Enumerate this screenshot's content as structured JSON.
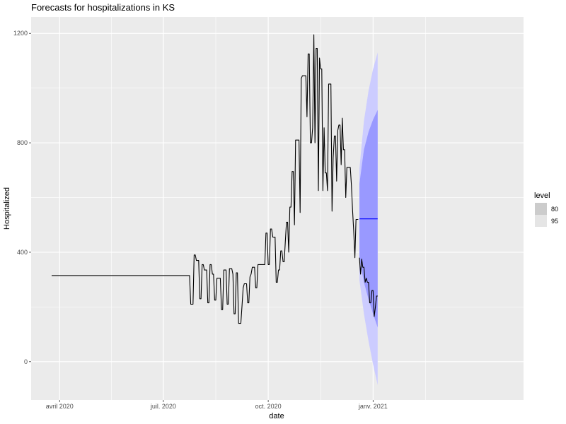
{
  "chart_data": {
    "type": "line",
    "title": "Forecasts for hospitalizations in KS",
    "xlabel": "date",
    "ylabel": "Hospitalized",
    "xlim": [
      "2020-03-07",
      "2021-05-13"
    ],
    "ylim": [
      -140,
      1260
    ],
    "x_ticks": [
      {
        "date": "2020-04-01",
        "label": "avril 2020"
      },
      {
        "date": "2020-07-01",
        "label": "juil. 2020"
      },
      {
        "date": "2020-10-01",
        "label": "oct. 2020"
      },
      {
        "date": "2021-01-01",
        "label": "janv. 2021"
      }
    ],
    "y_ticks": [
      0,
      400,
      800,
      1200
    ],
    "grid": true,
    "colors": {
      "panel": "#ebebeb",
      "grid": "#ffffff",
      "series": "#000000",
      "forecast": "#0000ff",
      "band80": "#9999ff",
      "band95": "#ccccff",
      "legend80": "#cccccc",
      "legend95": "#e5e5e5"
    },
    "legend": {
      "title": "level",
      "position": "right",
      "entries": [
        {
          "label": "80",
          "color": "#cccccc"
        },
        {
          "label": "95",
          "color": "#e5e5e5"
        }
      ]
    },
    "series": [
      {
        "points": [
          [
            "2020-03-25",
            315
          ],
          [
            "2020-07-24",
            315
          ],
          [
            "2020-07-25",
            210
          ],
          [
            "2020-07-27",
            210
          ],
          [
            "2020-07-28",
            390
          ],
          [
            "2020-07-29",
            390
          ],
          [
            "2020-07-30",
            370
          ],
          [
            "2020-08-01",
            370
          ],
          [
            "2020-08-02",
            230
          ],
          [
            "2020-08-03",
            230
          ],
          [
            "2020-08-04",
            355
          ],
          [
            "2020-08-05",
            355
          ],
          [
            "2020-08-06",
            335
          ],
          [
            "2020-08-08",
            335
          ],
          [
            "2020-08-09",
            215
          ],
          [
            "2020-08-10",
            215
          ],
          [
            "2020-08-11",
            355
          ],
          [
            "2020-08-12",
            355
          ],
          [
            "2020-08-13",
            320
          ],
          [
            "2020-08-14",
            320
          ],
          [
            "2020-08-15",
            225
          ],
          [
            "2020-08-16",
            225
          ],
          [
            "2020-08-17",
            305
          ],
          [
            "2020-08-20",
            305
          ],
          [
            "2020-08-21",
            190
          ],
          [
            "2020-08-22",
            190
          ],
          [
            "2020-08-23",
            335
          ],
          [
            "2020-08-25",
            335
          ],
          [
            "2020-08-26",
            210
          ],
          [
            "2020-08-27",
            210
          ],
          [
            "2020-08-28",
            340
          ],
          [
            "2020-08-30",
            340
          ],
          [
            "2020-08-31",
            320
          ],
          [
            "2020-09-01",
            175
          ],
          [
            "2020-09-02",
            175
          ],
          [
            "2020-09-03",
            325
          ],
          [
            "2020-09-04",
            325
          ],
          [
            "2020-09-05",
            140
          ],
          [
            "2020-09-07",
            140
          ],
          [
            "2020-09-08",
            205
          ],
          [
            "2020-09-09",
            270
          ],
          [
            "2020-09-10",
            285
          ],
          [
            "2020-09-12",
            285
          ],
          [
            "2020-09-13",
            215
          ],
          [
            "2020-09-14",
            215
          ],
          [
            "2020-09-15",
            310
          ],
          [
            "2020-09-16",
            320
          ],
          [
            "2020-09-17",
            345
          ],
          [
            "2020-09-19",
            345
          ],
          [
            "2020-09-20",
            270
          ],
          [
            "2020-09-21",
            270
          ],
          [
            "2020-09-22",
            355
          ],
          [
            "2020-09-28",
            355
          ],
          [
            "2020-09-29",
            470
          ],
          [
            "2020-09-30",
            470
          ],
          [
            "2020-10-01",
            355
          ],
          [
            "2020-10-02",
            355
          ],
          [
            "2020-10-03",
            485
          ],
          [
            "2020-10-04",
            485
          ],
          [
            "2020-10-05",
            455
          ],
          [
            "2020-10-07",
            455
          ],
          [
            "2020-10-08",
            290
          ],
          [
            "2020-10-09",
            290
          ],
          [
            "2020-10-10",
            335
          ],
          [
            "2020-10-11",
            335
          ],
          [
            "2020-10-12",
            405
          ],
          [
            "2020-10-13",
            405
          ],
          [
            "2020-10-14",
            365
          ],
          [
            "2020-10-15",
            365
          ],
          [
            "2020-10-16",
            440
          ],
          [
            "2020-10-17",
            510
          ],
          [
            "2020-10-18",
            510
          ],
          [
            "2020-10-19",
            400
          ],
          [
            "2020-10-20",
            565
          ],
          [
            "2020-10-21",
            565
          ],
          [
            "2020-10-22",
            695
          ],
          [
            "2020-10-23",
            695
          ],
          [
            "2020-10-24",
            500
          ],
          [
            "2020-10-25",
            810
          ],
          [
            "2020-10-28",
            810
          ],
          [
            "2020-10-29",
            545
          ],
          [
            "2020-10-30",
            1035
          ],
          [
            "2020-10-31",
            1045
          ],
          [
            "2020-11-01",
            1045
          ],
          [
            "2020-11-03",
            1045
          ],
          [
            "2020-11-04",
            895
          ],
          [
            "2020-11-05",
            1125
          ],
          [
            "2020-11-06",
            1125
          ],
          [
            "2020-11-07",
            800
          ],
          [
            "2020-11-08",
            800
          ],
          [
            "2020-11-09",
            855
          ],
          [
            "2020-11-10",
            1195
          ],
          [
            "2020-11-11",
            800
          ],
          [
            "2020-11-12",
            1145
          ],
          [
            "2020-11-13",
            1145
          ],
          [
            "2020-11-14",
            625
          ],
          [
            "2020-11-15",
            1110
          ],
          [
            "2020-11-16",
            1070
          ],
          [
            "2020-11-17",
            1070
          ],
          [
            "2020-11-18",
            625
          ],
          [
            "2020-11-19",
            855
          ],
          [
            "2020-11-20",
            690
          ],
          [
            "2020-11-21",
            690
          ],
          [
            "2020-11-22",
            625
          ],
          [
            "2020-11-23",
            1015
          ],
          [
            "2020-11-25",
            1015
          ],
          [
            "2020-11-26",
            550
          ],
          [
            "2020-11-27",
            745
          ],
          [
            "2020-11-28",
            825
          ],
          [
            "2020-11-29",
            825
          ],
          [
            "2020-11-30",
            660
          ],
          [
            "2020-12-01",
            845
          ],
          [
            "2020-12-02",
            865
          ],
          [
            "2020-12-03",
            865
          ],
          [
            "2020-12-04",
            720
          ],
          [
            "2020-12-05",
            890
          ],
          [
            "2020-12-06",
            775
          ],
          [
            "2020-12-07",
            775
          ],
          [
            "2020-12-08",
            600
          ],
          [
            "2020-12-09",
            710
          ],
          [
            "2020-12-12",
            710
          ],
          [
            "2020-12-13",
            645
          ],
          [
            "2020-12-14",
            555
          ],
          [
            "2020-12-15",
            480
          ],
          [
            "2020-12-16",
            380
          ],
          [
            "2020-12-17",
            520
          ],
          [
            "2020-12-19",
            520
          ]
        ]
      },
      {
        "points": [
          [
            "2020-12-20",
            380
          ],
          [
            "2020-12-21",
            320
          ],
          [
            "2020-12-22",
            375
          ],
          [
            "2020-12-23",
            345
          ],
          [
            "2020-12-24",
            345
          ],
          [
            "2020-12-25",
            290
          ],
          [
            "2020-12-26",
            305
          ],
          [
            "2020-12-27",
            290
          ],
          [
            "2020-12-28",
            290
          ],
          [
            "2020-12-29",
            215
          ],
          [
            "2020-12-30",
            215
          ],
          [
            "2020-12-31",
            260
          ],
          [
            "2021-01-01",
            260
          ],
          [
            "2021-01-02",
            165
          ],
          [
            "2021-01-03",
            200
          ],
          [
            "2021-01-04",
            240
          ],
          [
            "2021-01-05",
            240
          ]
        ]
      }
    ],
    "forecast": {
      "x": [
        "2020-12-20",
        "2020-12-24",
        "2020-12-28",
        "2021-01-01",
        "2021-01-05"
      ],
      "mean": [
        522,
        522,
        522,
        522,
        522
      ],
      "lo80": [
        378,
        290,
        228,
        175,
        125
      ],
      "hi80": [
        650,
        775,
        840,
        885,
        920
      ],
      "lo95": [
        298,
        175,
        75,
        -10,
        -85
      ],
      "hi95": [
        705,
        880,
        990,
        1070,
        1130
      ]
    }
  }
}
